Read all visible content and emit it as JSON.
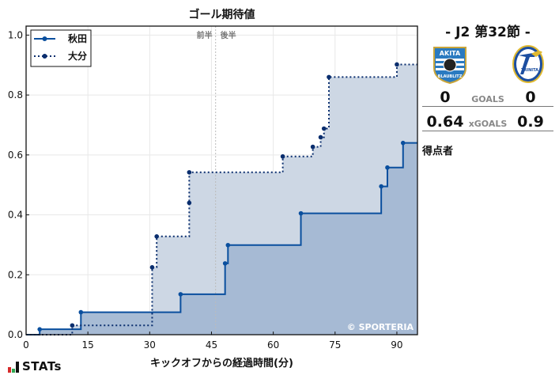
{
  "title": "ゴール期待値",
  "match": {
    "round": "- J2 第32節 -",
    "home": {
      "name": "秋田",
      "crest_text_top": "AKITA",
      "crest_text_bottom": "BLAUBLITZ",
      "goals": "0",
      "xgoals": "0.64"
    },
    "away": {
      "name": "大分",
      "crest_text": "TRINITA",
      "goals": "0",
      "xgoals": "0.9"
    },
    "goals_label": "GOALS",
    "xgoals_label": "xGOALS",
    "scorers_label": "得点者"
  },
  "footer": {
    "logo_text": "STATs",
    "copyright": "© SPORTERIA"
  },
  "colors": {
    "akita": "#0a4f9e",
    "oita": "#0a2e6e",
    "akita_fill": "#a3b8d3",
    "oita_fill": "#cdd7e4"
  },
  "chart_data": {
    "type": "line",
    "subtype": "step-area",
    "title": "ゴール期待値",
    "xlabel": "キックオフからの経過時間(分)",
    "ylabel": "",
    "xlim": [
      0,
      95
    ],
    "ylim": [
      0,
      1.03
    ],
    "xticks": [
      0,
      15,
      30,
      45,
      60,
      75,
      90
    ],
    "yticks": [
      0.0,
      0.2,
      0.4,
      0.6,
      0.8,
      1.0
    ],
    "xtick_labels": [
      "0",
      "15",
      "30",
      "45",
      "60",
      "75",
      "90"
    ],
    "ytick_labels": [
      "0.0",
      "0.2",
      "0.4",
      "0.6",
      "0.8",
      "1.0"
    ],
    "grid": true,
    "legend_position": "upper left",
    "annotations": [
      {
        "x": 46,
        "text_left": "前半",
        "text_right": "後半",
        "type": "halftime-line"
      }
    ],
    "series": [
      {
        "name": "秋田",
        "style": "solid",
        "x": [
          3.3,
          13.3,
          37.5,
          48.3,
          49.0,
          66.7,
          86.2,
          87.7,
          91.5
        ],
        "y": [
          0.018,
          0.075,
          0.135,
          0.238,
          0.299,
          0.405,
          0.495,
          0.558,
          0.64
        ]
      },
      {
        "name": "大分",
        "style": "dotted",
        "x": [
          11.2,
          30.6,
          31.7,
          39.6,
          39.6,
          62.3,
          69.6,
          71.5,
          72.3,
          73.5,
          90.0
        ],
        "y": [
          0.031,
          0.225,
          0.328,
          0.44,
          0.542,
          0.595,
          0.627,
          0.659,
          0.688,
          0.86,
          0.902
        ]
      }
    ]
  }
}
